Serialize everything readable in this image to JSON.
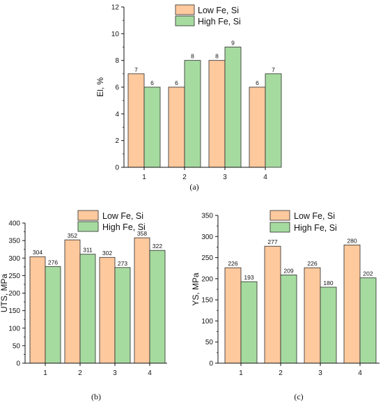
{
  "chart_data": [
    {
      "type": "bar",
      "ylabel": "El, %",
      "ylim": [
        0,
        12
      ],
      "yticks": [
        0,
        2,
        4,
        6,
        8,
        10,
        12
      ],
      "categories": [
        "1",
        "2",
        "3",
        "4"
      ],
      "series": [
        {
          "name": "Low Fe, Si",
          "values": [
            7,
            6,
            8,
            6
          ],
          "labels": [
            "7",
            "6",
            "8",
            "6"
          ],
          "color": "#FFC99E"
        },
        {
          "name": "High Fe, Si",
          "values": [
            6,
            8,
            9,
            7
          ],
          "labels": [
            "6",
            "8",
            "9",
            "7"
          ],
          "color": "#A6DBA0"
        }
      ],
      "legend": "top-center",
      "grid": false,
      "caption": "(a)"
    },
    {
      "type": "bar",
      "ylabel": "UTS, MPa",
      "ylim": [
        0,
        400
      ],
      "yticks": [
        0,
        50,
        100,
        150,
        200,
        250,
        300,
        350,
        400
      ],
      "categories": [
        "1",
        "2",
        "3",
        "4"
      ],
      "series": [
        {
          "name": "Low Fe, Si",
          "values": [
            304,
            352,
            302,
            358
          ],
          "labels": [
            "304",
            "352",
            "302",
            "358"
          ],
          "color": "#FFC99E"
        },
        {
          "name": "High Fe, Si",
          "values": [
            276,
            311,
            273,
            322
          ],
          "labels": [
            "276",
            "311",
            "273",
            "322"
          ],
          "color": "#A6DBA0"
        }
      ],
      "legend": "top-right",
      "grid": false,
      "caption": "(b)"
    },
    {
      "type": "bar",
      "ylabel": "YS, MPa",
      "ylim": [
        0,
        350
      ],
      "yticks": [
        0,
        50,
        100,
        150,
        200,
        250,
        300,
        350
      ],
      "categories": [
        "1",
        "2",
        "3",
        "4"
      ],
      "series": [
        {
          "name": "Low Fe, Si",
          "values": [
            226,
            277,
            226,
            280
          ],
          "labels": [
            "226",
            "277",
            "226",
            "280"
          ],
          "color": "#FFC99E"
        },
        {
          "name": "High Fe, Si",
          "values": [
            193,
            209,
            180,
            202
          ],
          "labels": [
            "193",
            "209",
            "180",
            "202"
          ],
          "color": "#A6DBA0"
        }
      ],
      "legend": "top-right",
      "grid": false,
      "caption": "(c)"
    }
  ]
}
